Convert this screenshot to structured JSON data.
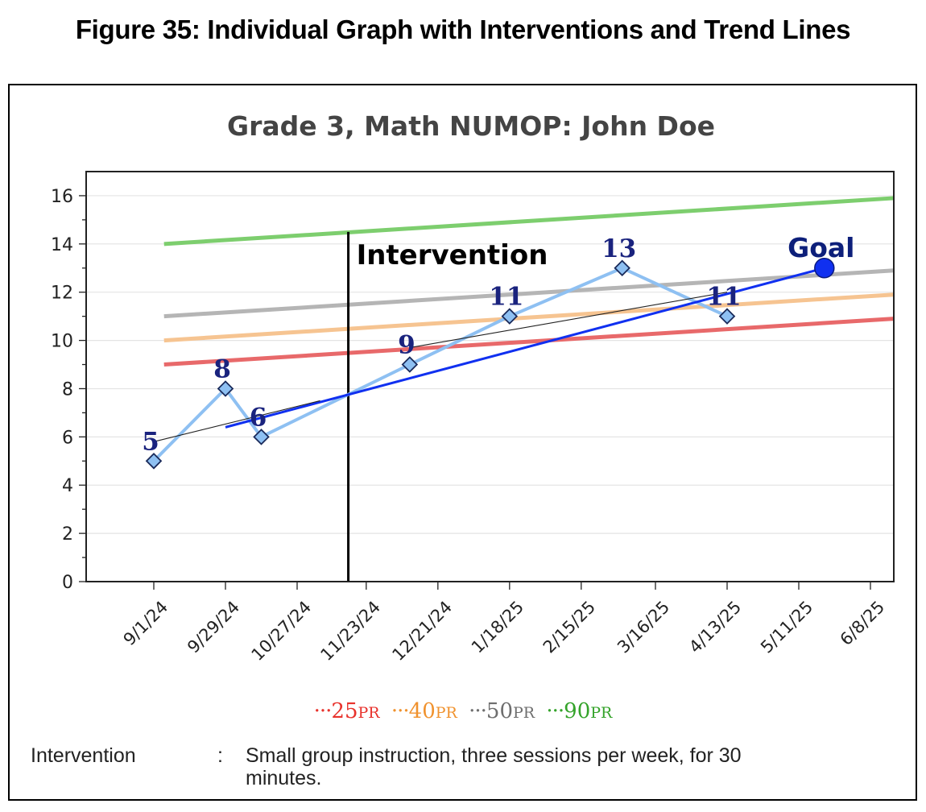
{
  "figure_title": "Figure 35: Individual Graph with Interventions and Trend Lines",
  "chart_data": {
    "type": "line",
    "title": "Grade 3, Math NUMOP: John Doe",
    "ylim": [
      0,
      17
    ],
    "yticks": [
      0,
      2,
      4,
      6,
      8,
      10,
      12,
      14,
      16
    ],
    "xlim": [
      "2024-08-01",
      "2025-06-30"
    ],
    "xticks": [
      {
        "date": "2024-09-01",
        "label": "9/1/24"
      },
      {
        "date": "2024-09-29",
        "label": "9/29/24"
      },
      {
        "date": "2024-10-27",
        "label": "10/27/24"
      },
      {
        "date": "2024-11-23",
        "label": "11/23/24"
      },
      {
        "date": "2024-12-21",
        "label": "12/21/24"
      },
      {
        "date": "2025-01-18",
        "label": "1/18/25"
      },
      {
        "date": "2025-02-15",
        "label": "2/15/25"
      },
      {
        "date": "2025-03-16",
        "label": "3/16/25"
      },
      {
        "date": "2025-04-13",
        "label": "4/13/25"
      },
      {
        "date": "2025-05-11",
        "label": "5/11/25"
      },
      {
        "date": "2025-06-08",
        "label": "6/8/25"
      }
    ],
    "grid": true,
    "scores": [
      {
        "x": "2024-09-01",
        "y": 5,
        "label": "5"
      },
      {
        "x": "2024-09-29",
        "y": 8,
        "label": "8"
      },
      {
        "x": "2024-10-13",
        "y": 6,
        "label": "6"
      },
      {
        "x": "2024-12-10",
        "y": 9,
        "label": "9"
      },
      {
        "x": "2025-01-18",
        "y": 11,
        "label": "11"
      },
      {
        "x": "2025-03-03",
        "y": 13,
        "label": "13"
      },
      {
        "x": "2025-04-13",
        "y": 11,
        "label": "11"
      }
    ],
    "percentile_lines": [
      {
        "name": "25",
        "color": "#e8696a",
        "x": [
          "2024-09-05",
          "2025-06-30"
        ],
        "y": [
          9.0,
          10.9
        ]
      },
      {
        "name": "40",
        "color": "#f6c491",
        "x": [
          "2024-09-05",
          "2025-06-30"
        ],
        "y": [
          10.0,
          11.9
        ]
      },
      {
        "name": "50",
        "color": "#b5b5b5",
        "x": [
          "2024-09-05",
          "2025-06-30"
        ],
        "y": [
          11.0,
          12.9
        ]
      },
      {
        "name": "90",
        "color": "#7dce6e",
        "x": [
          "2024-09-05",
          "2025-06-30"
        ],
        "y": [
          14.0,
          15.9
        ]
      }
    ],
    "goal_line": {
      "x": [
        "2024-09-29",
        "2025-05-21"
      ],
      "y": [
        6.4,
        13.0
      ],
      "color": "#1030f0"
    },
    "goal_point": {
      "x": "2025-05-21",
      "y": 13,
      "label": "Goal"
    },
    "trend_lines": [
      {
        "x": [
          "2024-09-01",
          "2024-11-05"
        ],
        "y": [
          5.8,
          7.5
        ]
      },
      {
        "x": [
          "2024-12-10",
          "2025-04-13"
        ],
        "y": [
          9.7,
          12.0
        ]
      }
    ],
    "intervention": {
      "x": "2024-11-16",
      "label": "Intervention"
    },
    "legend": [
      {
        "dots": "···",
        "value": "25",
        "suffix": "PR",
        "color": "#e8322c"
      },
      {
        "dots": "···",
        "value": "40",
        "suffix": "PR",
        "color": "#f0922e"
      },
      {
        "dots": "···",
        "value": "50",
        "suffix": "PR",
        "color": "#6e6e6e"
      },
      {
        "dots": "···",
        "value": "90",
        "suffix": "PR",
        "color": "#34a32a"
      }
    ]
  },
  "note": {
    "label": "Intervention",
    "separator": ":",
    "text_line1": "Small group instruction, three sessions per week, for 30",
    "text_line2": "minutes."
  }
}
